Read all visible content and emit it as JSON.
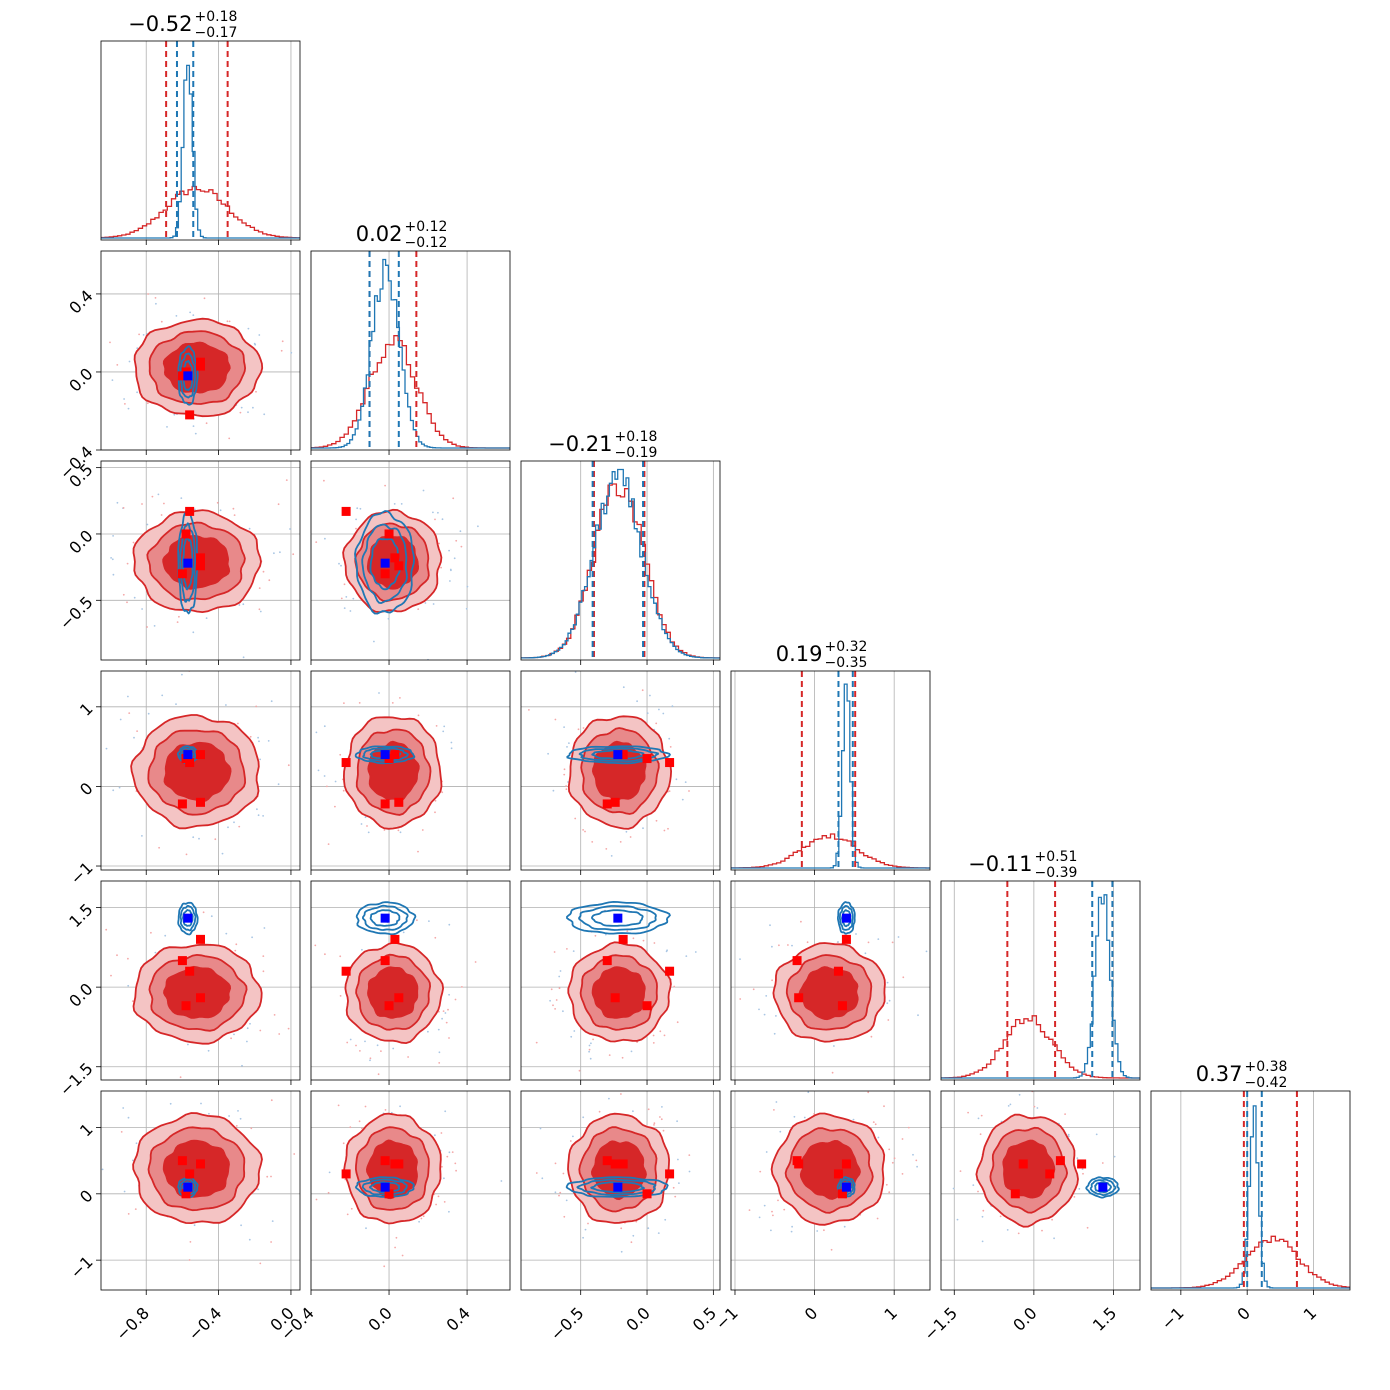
{
  "colors": {
    "red": "#d62728",
    "red_fill_inner": "#d62728",
    "red_fill_mid": "#e8898a",
    "red_fill_outer": "#f4c4c4",
    "blue": "#1f77b4",
    "marker_red": "#ff0000",
    "marker_blue": "#0000ff",
    "grid": "#b0b0b0"
  },
  "chart_data": {
    "type": "corner",
    "n_params": 6,
    "grid": true,
    "series": [
      {
        "color": "red",
        "description": "broad posterior with filled 2D contours"
      },
      {
        "color": "blue",
        "description": "narrow posterior with line contours"
      }
    ],
    "titles": [
      {
        "median": "−0.52",
        "plus": "+0.18",
        "minus": "−0.17"
      },
      {
        "median": "0.02",
        "plus": "+0.12",
        "minus": "−0.12"
      },
      {
        "median": "−0.21",
        "plus": "+0.18",
        "minus": "−0.19"
      },
      {
        "median": "0.19",
        "plus": "+0.32",
        "minus": "−0.35"
      },
      {
        "median": "−0.11",
        "plus": "+0.51",
        "minus": "−0.39"
      },
      {
        "median": "0.37",
        "plus": "+0.38",
        "minus": "−0.42"
      }
    ],
    "ranges": [
      [
        -1.05,
        0.05
      ],
      [
        -0.4,
        0.62
      ],
      [
        -0.95,
        0.55
      ],
      [
        -1.05,
        1.45
      ],
      [
        -1.75,
        2.0
      ],
      [
        -1.45,
        1.55
      ]
    ],
    "ticks": [
      [
        -0.8,
        -0.4,
        0.0
      ],
      [
        -0.4,
        0.0,
        0.4
      ],
      [
        -0.5,
        0.0,
        0.5
      ],
      [
        -1,
        0,
        1
      ],
      [
        -1.5,
        0.0,
        1.5
      ],
      [
        -1,
        0,
        1
      ]
    ],
    "tick_labels": [
      [
        "−0.8",
        "−0.4",
        "0.0"
      ],
      [
        "−0.4",
        "0.0",
        "0.4"
      ],
      [
        "−0.5",
        "0.0",
        "0.5"
      ],
      [
        "−1",
        "0",
        "1"
      ],
      [
        "−1.5",
        "0.0",
        "1.5"
      ],
      [
        "−1",
        "0",
        "1"
      ]
    ],
    "red_quantiles": [
      [
        -0.69,
        -0.35
      ],
      [
        -0.1,
        0.14
      ],
      [
        -0.4,
        -0.02
      ],
      [
        -0.16,
        0.51
      ],
      [
        -0.5,
        0.4
      ],
      [
        -0.05,
        0.75
      ]
    ],
    "blue_quantiles": [
      [
        -0.63,
        -0.54
      ],
      [
        -0.1,
        0.05
      ],
      [
        -0.41,
        -0.03
      ],
      [
        0.3,
        0.48
      ],
      [
        1.1,
        1.48
      ],
      [
        0.0,
        0.22
      ]
    ],
    "red_hist": [
      {
        "center": -0.52,
        "sigma": 0.17
      },
      {
        "center": 0.02,
        "sigma": 0.12
      },
      {
        "center": -0.21,
        "sigma": 0.185
      },
      {
        "center": 0.19,
        "sigma": 0.34
      },
      {
        "center": -0.11,
        "sigma": 0.45
      },
      {
        "center": 0.37,
        "sigma": 0.4
      }
    ],
    "blue_hist": [
      {
        "center": -0.57,
        "sigma": 0.025
      },
      {
        "center": -0.02,
        "sigma": 0.07
      },
      {
        "center": -0.22,
        "sigma": 0.18
      },
      {
        "center": 0.4,
        "sigma": 0.05
      },
      {
        "center": 1.3,
        "sigma": 0.14
      },
      {
        "center": 0.1,
        "sigma": 0.07
      }
    ],
    "red_hist_peak_ratio": [
      0.26,
      0.56,
      0.92,
      0.17,
      0.31,
      0.26
    ],
    "blue_truth": [
      -0.57,
      -0.02,
      -0.22,
      0.4,
      1.3,
      0.1
    ],
    "red_points": [
      [
        -0.56,
        -0.22,
        0.17,
        0.3,
        0.3,
        0.3
      ],
      [
        -0.5,
        0.05,
        -0.24,
        -0.2,
        -0.2,
        0.45
      ],
      [
        -0.6,
        -0.02,
        -0.3,
        -0.22,
        0.5,
        0.5
      ],
      [
        -0.5,
        0.03,
        -0.18,
        0.4,
        0.9,
        0.45
      ],
      [
        -0.58,
        0.0,
        0.0,
        0.35,
        -0.35,
        0.0
      ]
    ]
  }
}
